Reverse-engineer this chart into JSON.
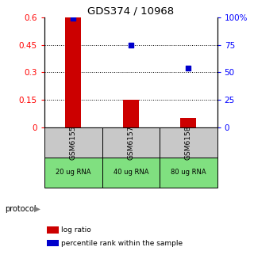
{
  "title": "GDS374 / 10968",
  "samples": [
    "GSM6155",
    "GSM6157",
    "GSM6158"
  ],
  "protocols": [
    "20 ug RNA",
    "40 ug RNA",
    "80 ug RNA"
  ],
  "log_ratio": [
    0.6,
    0.15,
    0.05
  ],
  "percentile_rank": [
    99.5,
    75.0,
    54.0
  ],
  "ylim_left": [
    0,
    0.6
  ],
  "ylim_right": [
    0,
    100
  ],
  "yticks_left": [
    0,
    0.15,
    0.3,
    0.45,
    0.6
  ],
  "ytick_labels_left": [
    "0",
    "0.15",
    "0.3",
    "0.45",
    "0.6"
  ],
  "yticks_right": [
    0,
    25,
    50,
    75,
    100
  ],
  "ytick_labels_right": [
    "0",
    "25",
    "50",
    "75",
    "100%"
  ],
  "bar_color": "#cc0000",
  "scatter_color": "#0000cc",
  "bg_color": "#ffffff",
  "plot_bg": "#ffffff",
  "gray_cell_color": "#c8c8c8",
  "green_cell_color": "#80e080",
  "legend_bar_label": "log ratio",
  "legend_scatter_label": "percentile rank within the sample",
  "protocol_label": "protocol"
}
